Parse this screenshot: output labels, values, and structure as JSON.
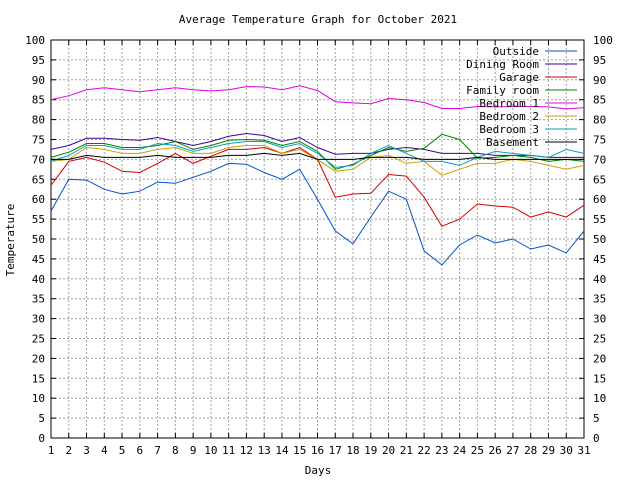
{
  "chart_data": {
    "type": "line",
    "title": "Average Temperature Graph for October 2021",
    "xlabel": "Days",
    "ylabel": "Temperature",
    "xlim": [
      1,
      31
    ],
    "ylim": [
      0,
      100
    ],
    "x_ticks": [
      1,
      2,
      3,
      4,
      5,
      6,
      7,
      8,
      9,
      10,
      11,
      12,
      13,
      14,
      15,
      16,
      17,
      18,
      19,
      20,
      21,
      22,
      23,
      24,
      25,
      26,
      27,
      28,
      29,
      30,
      31
    ],
    "y_ticks": [
      0,
      5,
      10,
      15,
      20,
      25,
      30,
      35,
      40,
      45,
      50,
      55,
      60,
      65,
      70,
      75,
      80,
      85,
      90,
      95,
      100
    ],
    "grid": true,
    "legend_position": "top-right",
    "x": [
      1,
      2,
      3,
      4,
      5,
      6,
      7,
      8,
      9,
      10,
      11,
      12,
      13,
      14,
      15,
      16,
      17,
      18,
      19,
      20,
      21,
      22,
      23,
      24,
      25,
      26,
      27,
      28,
      29,
      30,
      31
    ],
    "series": [
      {
        "name": "Outside",
        "color": "#0050d0",
        "values": [
          57,
          65,
          64.8,
          62.5,
          61.3,
          62,
          64.3,
          64,
          65.5,
          67,
          69,
          68.8,
          66.7,
          65,
          67.5,
          60,
          52,
          48.8,
          55.5,
          62,
          60,
          47,
          43.5,
          48.5,
          51,
          49,
          50,
          47.5,
          48.5,
          46.5,
          52
        ]
      },
      {
        "name": "Dining Room",
        "color": "#400090",
        "values": [
          72.5,
          73.5,
          75.3,
          75.3,
          75,
          74.8,
          75.5,
          74.5,
          73.5,
          74.5,
          75.8,
          76.5,
          76,
          74.5,
          75.5,
          73,
          71.3,
          71.5,
          71.5,
          72.5,
          73,
          72.5,
          71.5,
          71.5,
          71.5,
          71,
          71,
          71,
          70.5,
          70.5,
          70.5
        ]
      },
      {
        "name": "Garage",
        "color": "#d00000",
        "values": [
          63.5,
          69.5,
          70.5,
          69.3,
          67,
          66.7,
          69,
          71.5,
          69,
          70.8,
          72.5,
          72.5,
          73,
          71.5,
          73,
          70,
          60.5,
          61.3,
          61.5,
          66.2,
          65.8,
          60.5,
          53.2,
          55,
          58.8,
          58.3,
          58,
          55.5,
          56.8,
          55.5,
          58.5
        ]
      },
      {
        "name": "Family room",
        "color": "#008000",
        "values": [
          70.5,
          71.8,
          74,
          74,
          73,
          73,
          73.5,
          74.5,
          72.5,
          73.5,
          74.8,
          75,
          74.8,
          73.5,
          74.5,
          72,
          67.5,
          68.8,
          71,
          73,
          72,
          72.8,
          76.3,
          75,
          70.3,
          70.5,
          71,
          70.5,
          69.5,
          70,
          69.5
        ]
      },
      {
        "name": "Bedroom 1",
        "color": "#e000e0",
        "values": [
          85,
          86,
          87.5,
          88,
          87.5,
          87,
          87.5,
          88,
          87.5,
          87.2,
          87.5,
          88.3,
          88.2,
          87.5,
          88.5,
          87.3,
          84.5,
          84.2,
          84,
          85.3,
          85,
          84.3,
          82.8,
          82.8,
          83.3,
          83.2,
          83.3,
          83.3,
          83.2,
          82.7,
          83
        ]
      },
      {
        "name": "Bedroom 2",
        "color": "#d0a000",
        "values": [
          69.5,
          70,
          73,
          72.5,
          71.5,
          71.5,
          72.5,
          73,
          71.5,
          71.5,
          73,
          73.5,
          73.5,
          71.5,
          72.5,
          70,
          67,
          67.5,
          70.5,
          71,
          69,
          69.5,
          66,
          67.5,
          69,
          69,
          70,
          69.5,
          68.5,
          67.5,
          68.5
        ]
      },
      {
        "name": "Bedroom 3",
        "color": "#00a0c0",
        "values": [
          69.5,
          71,
          73.5,
          73.5,
          72.5,
          72.5,
          74,
          73.5,
          72,
          73,
          74,
          74.5,
          74.5,
          73,
          74,
          71.5,
          68,
          68.5,
          71.5,
          73.5,
          71.5,
          69.5,
          69.5,
          68.5,
          70.5,
          72,
          71.5,
          71,
          70.5,
          72.5,
          71.5
        ]
      },
      {
        "name": "Basement",
        "color": "#000000",
        "values": [
          70,
          70,
          71,
          70.5,
          70.5,
          70.5,
          71,
          70.5,
          70.5,
          70.5,
          71,
          71,
          71.5,
          71,
          71.5,
          70,
          70,
          70,
          70.5,
          70.5,
          70.5,
          70,
          70,
          70,
          70.5,
          70,
          70,
          70,
          70,
          70,
          70
        ]
      }
    ]
  }
}
